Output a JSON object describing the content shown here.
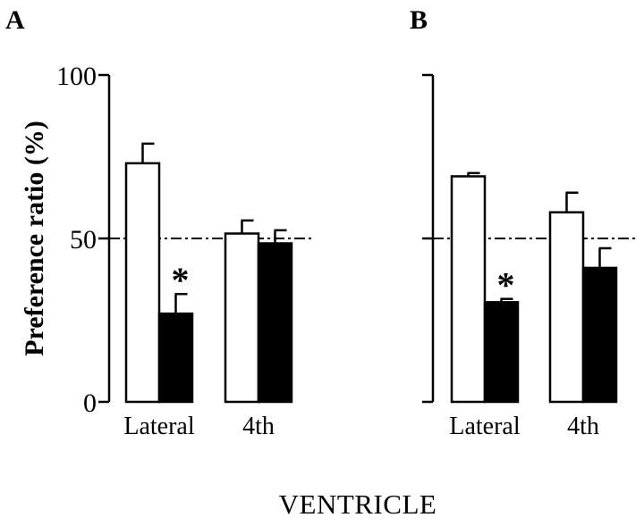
{
  "chart_data": {
    "type": "bar",
    "ylabel": "Preference ratio (%)",
    "xlabel": "VENTRICLE",
    "ylim": [
      0,
      100
    ],
    "yticks": [
      0,
      50,
      100
    ],
    "reference_line": 50,
    "categories": [
      "Lateral",
      "4th"
    ],
    "series_colors": [
      "#ffffff",
      "#000000"
    ],
    "panels": [
      {
        "label": "A",
        "show_tick_labels": true,
        "groups": [
          {
            "category": "Lateral",
            "open": {
              "value": 73,
              "error": 6
            },
            "filled": {
              "value": 27,
              "error": 6
            },
            "significance": "*"
          },
          {
            "category": "4th",
            "open": {
              "value": 51.5,
              "error": 4
            },
            "filled": {
              "value": 48.5,
              "error": 4
            },
            "significance": ""
          }
        ]
      },
      {
        "label": "B",
        "show_tick_labels": false,
        "groups": [
          {
            "category": "Lateral",
            "open": {
              "value": 69,
              "error": 1
            },
            "filled": {
              "value": 30.5,
              "error": 1
            },
            "significance": "*"
          },
          {
            "category": "4th",
            "open": {
              "value": 58,
              "error": 6
            },
            "filled": {
              "value": 41,
              "error": 6
            },
            "significance": ""
          }
        ]
      }
    ]
  }
}
